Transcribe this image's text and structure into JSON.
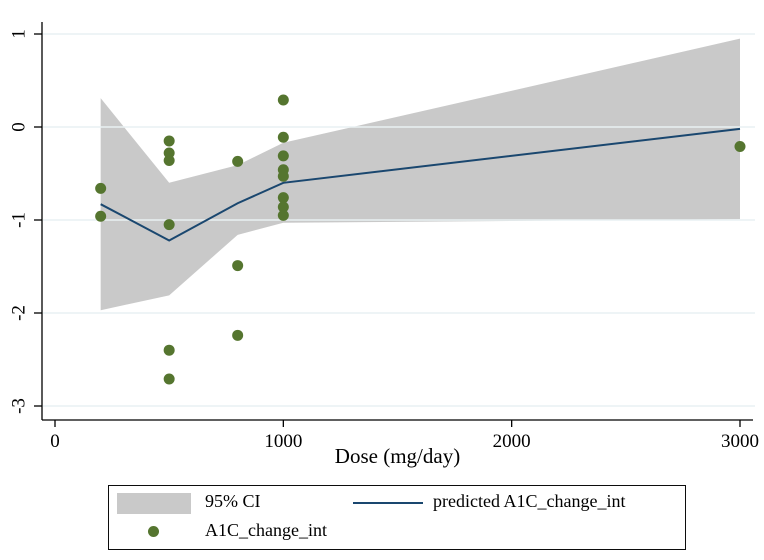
{
  "chart_data": {
    "type": "scatter",
    "title": "",
    "xlabel": "Dose (mg/day)",
    "ylabel": "",
    "xlim": [
      0,
      3000
    ],
    "ylim": [
      -3,
      1
    ],
    "x_ticks": [
      0,
      1000,
      2000,
      3000
    ],
    "y_ticks": [
      1,
      0,
      -1,
      -2,
      -3
    ],
    "grid": "horizontal-only",
    "legend_position": "bottom-box",
    "series": [
      {
        "name": "95% CI",
        "type": "band",
        "x": [
          200,
          500,
          800,
          1000,
          3000
        ],
        "upper": [
          0.31,
          -0.6,
          -0.41,
          -0.17,
          0.95
        ],
        "lower": [
          -1.97,
          -1.81,
          -1.16,
          -1.03,
          -0.99
        ],
        "color": "#c9c9c9"
      },
      {
        "name": "predicted A1C_change_int",
        "type": "line",
        "x": [
          200,
          500,
          800,
          1000,
          3000
        ],
        "y": [
          -0.83,
          -1.22,
          -0.82,
          -0.6,
          -0.02
        ],
        "color": "#1a476f"
      },
      {
        "name": "A1C_change_int",
        "type": "scatter",
        "points": [
          [
            200,
            -0.66
          ],
          [
            200,
            -0.96
          ],
          [
            500,
            -0.15
          ],
          [
            500,
            -0.28
          ],
          [
            500,
            -0.36
          ],
          [
            500,
            -1.05
          ],
          [
            500,
            -2.4
          ],
          [
            500,
            -2.71
          ],
          [
            800,
            -0.37
          ],
          [
            800,
            -1.49
          ],
          [
            800,
            -2.24
          ],
          [
            1000,
            0.29
          ],
          [
            1000,
            -0.11
          ],
          [
            1000,
            -0.31
          ],
          [
            1000,
            -0.46
          ],
          [
            1000,
            -0.53
          ],
          [
            1000,
            -0.76
          ],
          [
            1000,
            -0.86
          ],
          [
            1000,
            -0.95
          ],
          [
            3000,
            -0.21
          ]
        ],
        "color": "#55752f"
      }
    ],
    "colors": {
      "background": "#ffffff",
      "grid": "#e9f1f3",
      "axis": "#000000",
      "band": "#c9c9c9",
      "line": "#1a476f",
      "marker": "#55752f"
    }
  }
}
